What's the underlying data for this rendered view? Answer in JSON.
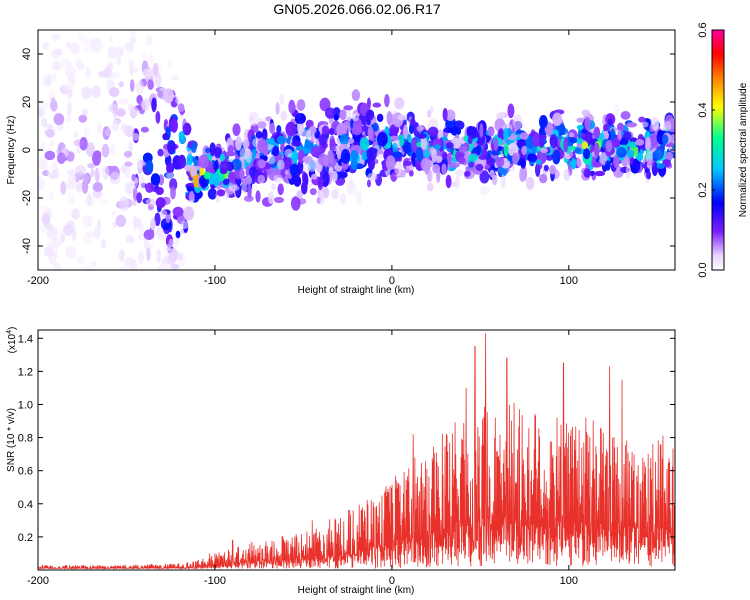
{
  "figure_title": "GN05.2026.066.02.06.R17",
  "chart_data": [
    {
      "type": "heatmap",
      "title": "GN05.2026.066.02.06.R17",
      "xlabel": "Height of straight line (km)",
      "ylabel": "Frequency (Hz)",
      "xlim": [
        -200,
        160
      ],
      "ylim": [
        -50,
        50
      ],
      "x_ticks": [
        -200,
        -100,
        0,
        100
      ],
      "y_ticks": [
        -40,
        -20,
        0,
        20,
        40
      ],
      "x_tick_labels": [
        "-200",
        "-100",
        "0",
        "100"
      ],
      "y_tick_labels": [
        "-40",
        "-20",
        "0",
        "20",
        "40"
      ],
      "colorbar": {
        "label": "Normalized spectral amplitude",
        "range": [
          0.0,
          0.6
        ],
        "ticks": [
          0.0,
          0.2,
          0.4,
          0.6
        ],
        "tick_labels": [
          "0.0",
          "0.2",
          "0.4",
          "0.6"
        ],
        "colors": [
          "#ffffff",
          "#7b1fff",
          "#0000ff",
          "#00c8ff",
          "#00ff90",
          "#ffff00",
          "#ff8000",
          "#ff0000",
          "#ff00a0"
        ]
      },
      "description_points": [
        {
          "x": -180,
          "center_freq": 0,
          "spread": 45,
          "amplitude": 0.06
        },
        {
          "x": -150,
          "center_freq": 0,
          "spread": 45,
          "amplitude": 0.07
        },
        {
          "x": -120,
          "center_freq": -10,
          "spread": 30,
          "amplitude": 0.35
        },
        {
          "x": -110,
          "center_freq": -11,
          "spread": 10,
          "amplitude": 0.45
        },
        {
          "x": -80,
          "center_freq": -3,
          "spread": 18,
          "amplitude": 0.25
        },
        {
          "x": -40,
          "center_freq": 0,
          "spread": 25,
          "amplitude": 0.22
        },
        {
          "x": 0,
          "center_freq": 2,
          "spread": 18,
          "amplitude": 0.25
        },
        {
          "x": 50,
          "center_freq": 0,
          "spread": 15,
          "amplitude": 0.3
        },
        {
          "x": 100,
          "center_freq": 2,
          "spread": 14,
          "amplitude": 0.32
        },
        {
          "x": 150,
          "center_freq": 2,
          "spread": 14,
          "amplitude": 0.35
        }
      ]
    },
    {
      "type": "line",
      "title": "",
      "xlabel": "Height of straight line (km)",
      "ylabel": "SNR (10 * v/v)",
      "y_multiplier_label": "(x10",
      "y_multiplier_exp": "4",
      "y_multiplier_close": ")",
      "xlim": [
        -200,
        160
      ],
      "ylim": [
        0,
        1.45
      ],
      "x_ticks": [
        -200,
        -100,
        0,
        100
      ],
      "y_ticks": [
        0.2,
        0.4,
        0.6,
        0.8,
        1.0,
        1.2,
        1.4
      ],
      "x_tick_labels": [
        "-200",
        "-100",
        "0",
        "100"
      ],
      "y_tick_labels": [
        "0.2",
        "0.4",
        "0.6",
        "0.8",
        "1.0",
        "1.2",
        "1.4"
      ],
      "color": "#e8312b",
      "envelope": {
        "x": [
          -200,
          -160,
          -120,
          -110,
          -100,
          -90,
          -80,
          -60,
          -40,
          -20,
          0,
          20,
          40,
          60,
          80,
          100,
          120,
          140,
          160
        ],
        "y": [
          0.03,
          0.03,
          0.04,
          0.06,
          0.1,
          0.14,
          0.17,
          0.22,
          0.28,
          0.4,
          0.55,
          0.75,
          0.95,
          1.05,
          1.0,
          0.95,
          0.9,
          0.85,
          0.8
        ]
      },
      "peaks": [
        {
          "x": -103,
          "y": 0.1
        },
        {
          "x": -90,
          "y": 0.18
        },
        {
          "x": -45,
          "y": 0.3
        },
        {
          "x": 12,
          "y": 0.82
        },
        {
          "x": 42,
          "y": 1.1
        },
        {
          "x": 47,
          "y": 1.35
        },
        {
          "x": 53,
          "y": 1.43
        },
        {
          "x": 65,
          "y": 1.28
        },
        {
          "x": 97,
          "y": 1.25
        },
        {
          "x": 123,
          "y": 1.23
        },
        {
          "x": 130,
          "y": 1.15
        }
      ]
    }
  ]
}
